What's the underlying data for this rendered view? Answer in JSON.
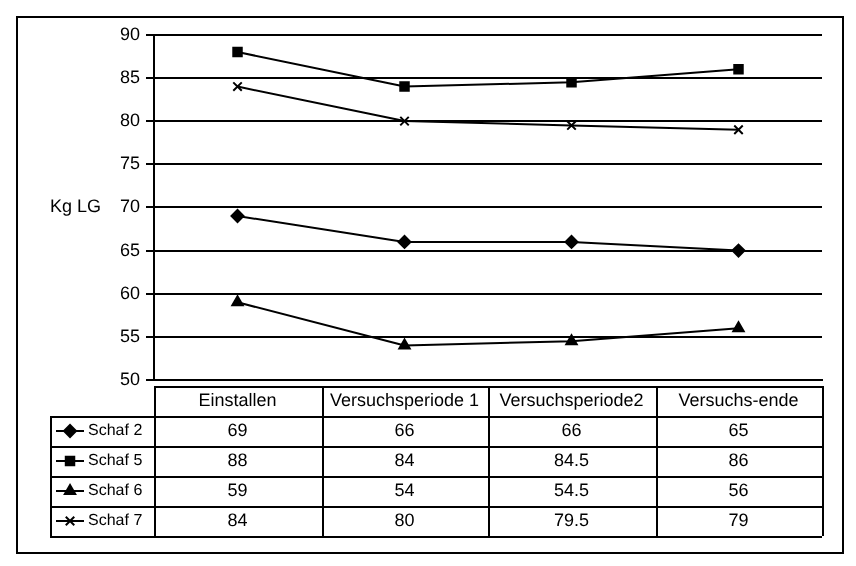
{
  "chart_data": {
    "type": "line",
    "ylabel": "Kg LG",
    "categories": [
      "Einstallen",
      "Versuchsperiode 1",
      "Versuchsperiode2",
      "Versuchs-ende"
    ],
    "series": [
      {
        "name": "Schaf 2",
        "color": "#000000",
        "marker": "diamond",
        "values": [
          69,
          66,
          66,
          65
        ]
      },
      {
        "name": "Schaf 5",
        "color": "#000000",
        "marker": "square",
        "values": [
          88,
          84,
          84.5,
          86
        ]
      },
      {
        "name": "Schaf 6",
        "color": "#000000",
        "marker": "triangle",
        "values": [
          59,
          54,
          54.5,
          56
        ]
      },
      {
        "name": "Schaf 7",
        "color": "#000000",
        "marker": "cross",
        "values": [
          84,
          80,
          79.5,
          79
        ]
      }
    ],
    "ylim": [
      50,
      90
    ],
    "yticks": [
      50,
      55,
      60,
      65,
      70,
      75,
      80,
      85,
      90
    ],
    "grid": "y",
    "legend": "bottom",
    "data_labels": true
  }
}
